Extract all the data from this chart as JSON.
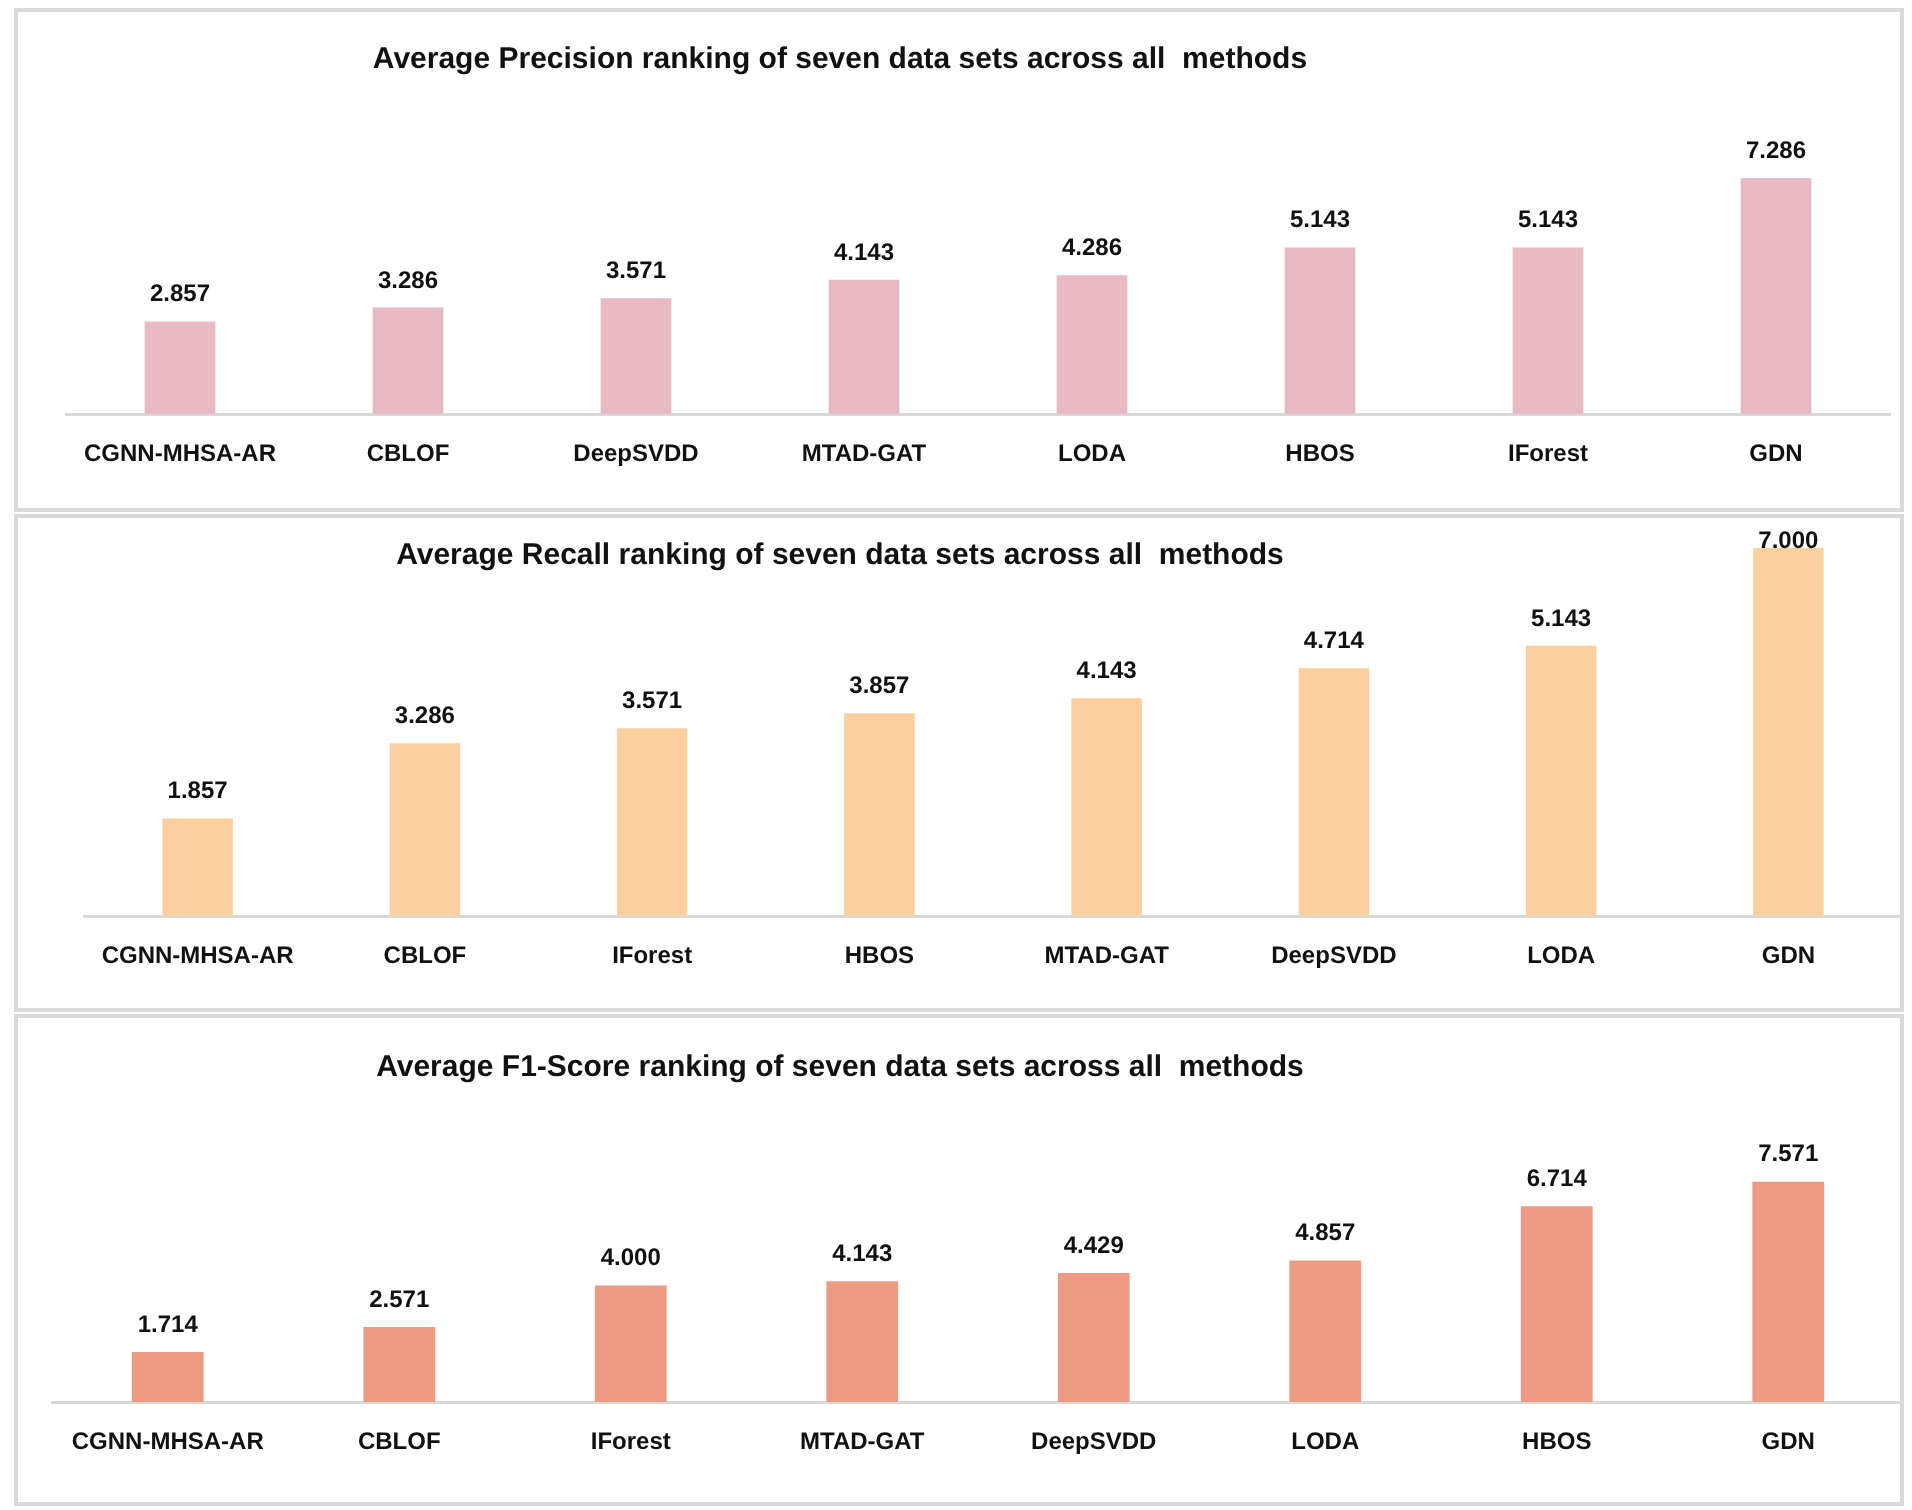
{
  "chart_data": [
    {
      "type": "bar",
      "title": "Average Precision ranking of seven data sets across all  methods",
      "categories": [
        "CGNN-MHSA-AR",
        "CBLOF",
        "DeepSVDD",
        "MTAD-GAT",
        "LODA",
        "HBOS",
        "IForest",
        "GDN"
      ],
      "values": [
        2.857,
        3.286,
        3.571,
        4.143,
        4.286,
        5.143,
        5.143,
        7.286
      ],
      "value_labels": [
        "2.857",
        "3.286",
        "3.571",
        "4.143",
        "4.286",
        "5.143",
        "5.143",
        "7.286"
      ],
      "color": "#e8bac4",
      "ylim": [
        0,
        7.286
      ],
      "tick_labels": "x"
    },
    {
      "type": "bar",
      "title": "Average Recall ranking of seven data sets across all  methods",
      "categories": [
        "CGNN-MHSA-AR",
        "CBLOF",
        "IForest",
        "HBOS",
        "MTAD-GAT",
        "DeepSVDD",
        "LODA",
        "GDN"
      ],
      "values": [
        1.857,
        3.286,
        3.571,
        3.857,
        4.143,
        4.714,
        5.143,
        7.0
      ],
      "value_labels": [
        "1.857",
        "3.286",
        "3.571",
        "3.857",
        "4.143",
        "4.714",
        "5.143",
        "7.000"
      ],
      "color": "#fccf9e",
      "ylim": [
        0,
        7.0
      ],
      "tick_labels": "x"
    },
    {
      "type": "bar",
      "title": "Average F1-Score ranking of seven data sets across all  methods",
      "categories": [
        "CGNN-MHSA-AR",
        "CBLOF",
        "IForest",
        "MTAD-GAT",
        "DeepSVDD",
        "LODA",
        "HBOS",
        "GDN"
      ],
      "values": [
        1.714,
        2.571,
        4.0,
        4.143,
        4.429,
        4.857,
        6.714,
        7.571
      ],
      "value_labels": [
        "1.714",
        "2.571",
        "4.000",
        "4.143",
        "4.429",
        "4.857",
        "6.714",
        "7.571"
      ],
      "color": "#ee9b84",
      "ylim": [
        0,
        7.571
      ],
      "tick_labels": "x"
    }
  ]
}
